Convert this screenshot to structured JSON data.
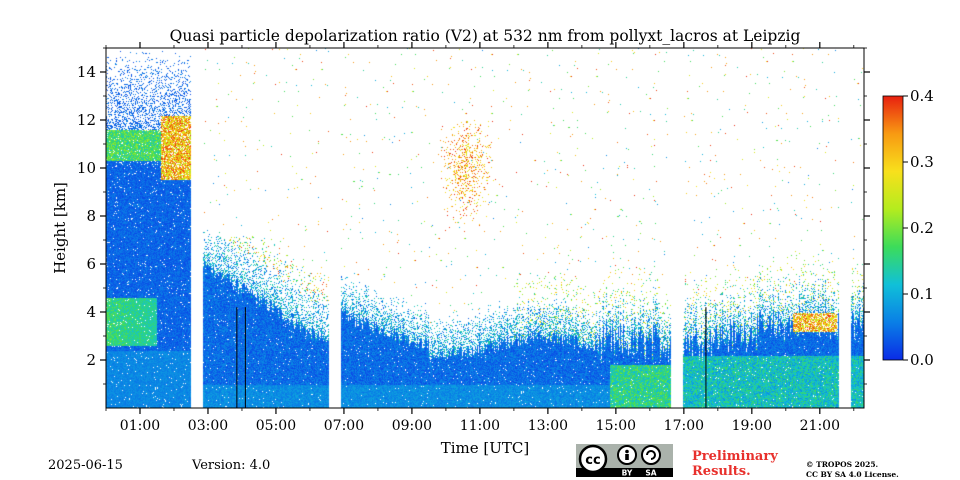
{
  "chart_data": {
    "type": "heatmap",
    "title": "Quasi particle depolarization ratio (V2) at 532 nm from pollyxt_lacros at Leipzig",
    "xlabel": "Time [UTC]",
    "ylabel": "Height [km]",
    "x_range_hours": [
      0.0,
      22.3
    ],
    "ylim": [
      0,
      15
    ],
    "x_ticks": [
      "01:00",
      "03:00",
      "05:00",
      "07:00",
      "09:00",
      "11:00",
      "13:00",
      "15:00",
      "17:00",
      "19:00",
      "21:00"
    ],
    "x_tick_hours": [
      1,
      3,
      5,
      7,
      9,
      11,
      13,
      15,
      17,
      19,
      21
    ],
    "y_ticks": [
      2,
      4,
      6,
      8,
      10,
      12,
      14
    ],
    "colorbar": {
      "range": [
        0.0,
        0.4
      ],
      "ticks": [
        "0.0",
        "0.1",
        "0.2",
        "0.3",
        "0.4"
      ],
      "tick_values": [
        0.0,
        0.1,
        0.2,
        0.3,
        0.4
      ],
      "colormap": [
        "#0a2be6",
        "#0a7fe6",
        "#10c0d8",
        "#3cdc5a",
        "#b4ec1e",
        "#f8e01c",
        "#f89a12",
        "#e82010"
      ]
    },
    "data_gaps_hours": [
      [
        2.5,
        2.85
      ],
      [
        6.55,
        6.9
      ],
      [
        16.6,
        16.95
      ],
      [
        21.55,
        21.9
      ]
    ],
    "legend": "colorbar-right",
    "grid": false
  },
  "footer": {
    "date": "2025-06-15",
    "version": "Version: 4.0",
    "preliminary_line1": "Preliminary",
    "preliminary_line2": "Results.",
    "copyright_line1": "© TROPOS 2025.",
    "copyright_line2": "CC BY SA 4.0 License.",
    "badge_cc": "cc",
    "badge_by": "BY",
    "badge_sa": "SA"
  }
}
